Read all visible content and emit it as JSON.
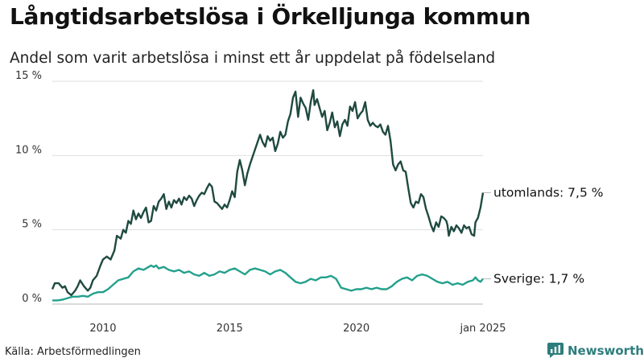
{
  "title": "Långtidsarbetslösa i Örkelljunga kommun",
  "subtitle": "Andel som varit arbetslösa i minst ett år uppdelat på födelseland",
  "source": "Källa: Arbetsförmedlingen",
  "brand": {
    "name": "Newsworthy",
    "icon": "bar-chart-icon",
    "color": "#2e7d7d"
  },
  "chart_data": {
    "type": "line",
    "title": "Långtidsarbetslösa i Örkelljunga kommun",
    "subtitle": "Andel som varit arbetslösa i minst ett år uppdelat på födelseland",
    "xlabel": "",
    "ylabel": "",
    "xlim": [
      2008.0,
      2025.0
    ],
    "ylim": [
      0,
      15
    ],
    "y_ticks": [
      0,
      5,
      10,
      15
    ],
    "y_tick_labels": [
      "0 %",
      "5 %",
      "10 %",
      "15 %"
    ],
    "x_ticks": [
      2010,
      2015,
      2020,
      2025
    ],
    "x_tick_labels": [
      "2010",
      "2015",
      "2020",
      "jan 2025"
    ],
    "grid": true,
    "series": [
      {
        "name": "utomlands",
        "label": "utomlands: 7,5 %",
        "color": "#1f4a40",
        "points": [
          [
            2008.0,
            1.0
          ],
          [
            2008.1,
            1.4
          ],
          [
            2008.25,
            1.4
          ],
          [
            2008.4,
            1.1
          ],
          [
            2008.5,
            1.2
          ],
          [
            2008.6,
            0.8
          ],
          [
            2008.75,
            0.6
          ],
          [
            2008.9,
            0.9
          ],
          [
            2009.0,
            1.2
          ],
          [
            2009.1,
            1.6
          ],
          [
            2009.25,
            1.2
          ],
          [
            2009.4,
            0.9
          ],
          [
            2009.5,
            1.1
          ],
          [
            2009.6,
            1.6
          ],
          [
            2009.75,
            1.9
          ],
          [
            2009.9,
            2.6
          ],
          [
            2010.0,
            3.0
          ],
          [
            2010.15,
            3.2
          ],
          [
            2010.3,
            3.0
          ],
          [
            2010.45,
            3.6
          ],
          [
            2010.55,
            4.6
          ],
          [
            2010.7,
            4.4
          ],
          [
            2010.8,
            5.0
          ],
          [
            2010.9,
            4.8
          ],
          [
            2011.0,
            5.6
          ],
          [
            2011.1,
            5.4
          ],
          [
            2011.2,
            6.3
          ],
          [
            2011.3,
            5.7
          ],
          [
            2011.4,
            6.1
          ],
          [
            2011.5,
            5.8
          ],
          [
            2011.6,
            6.2
          ],
          [
            2011.7,
            6.5
          ],
          [
            2011.8,
            5.5
          ],
          [
            2011.9,
            5.6
          ],
          [
            2012.0,
            6.6
          ],
          [
            2012.1,
            6.3
          ],
          [
            2012.2,
            6.9
          ],
          [
            2012.3,
            7.1
          ],
          [
            2012.4,
            7.4
          ],
          [
            2012.5,
            6.4
          ],
          [
            2012.6,
            6.9
          ],
          [
            2012.7,
            6.5
          ],
          [
            2012.8,
            7.0
          ],
          [
            2012.9,
            6.8
          ],
          [
            2013.0,
            7.1
          ],
          [
            2013.1,
            6.7
          ],
          [
            2013.2,
            7.2
          ],
          [
            2013.3,
            7.0
          ],
          [
            2013.4,
            7.3
          ],
          [
            2013.5,
            7.1
          ],
          [
            2013.6,
            6.6
          ],
          [
            2013.7,
            7.0
          ],
          [
            2013.8,
            7.3
          ],
          [
            2013.9,
            7.5
          ],
          [
            2014.0,
            7.4
          ],
          [
            2014.1,
            7.8
          ],
          [
            2014.2,
            8.1
          ],
          [
            2014.3,
            7.9
          ],
          [
            2014.4,
            6.9
          ],
          [
            2014.5,
            6.8
          ],
          [
            2014.6,
            6.6
          ],
          [
            2014.7,
            6.4
          ],
          [
            2014.8,
            6.7
          ],
          [
            2014.9,
            6.5
          ],
          [
            2015.0,
            7.0
          ],
          [
            2015.1,
            7.6
          ],
          [
            2015.2,
            7.2
          ],
          [
            2015.3,
            8.9
          ],
          [
            2015.4,
            9.7
          ],
          [
            2015.5,
            9.0
          ],
          [
            2015.6,
            8.0
          ],
          [
            2015.7,
            8.8
          ],
          [
            2015.8,
            9.4
          ],
          [
            2015.9,
            9.9
          ],
          [
            2016.0,
            10.4
          ],
          [
            2016.1,
            10.9
          ],
          [
            2016.2,
            11.4
          ],
          [
            2016.3,
            10.9
          ],
          [
            2016.4,
            10.6
          ],
          [
            2016.5,
            11.3
          ],
          [
            2016.6,
            11.0
          ],
          [
            2016.7,
            11.2
          ],
          [
            2016.8,
            10.3
          ],
          [
            2016.9,
            10.8
          ],
          [
            2017.0,
            11.6
          ],
          [
            2017.1,
            11.2
          ],
          [
            2017.2,
            11.4
          ],
          [
            2017.3,
            12.3
          ],
          [
            2017.4,
            12.8
          ],
          [
            2017.5,
            13.9
          ],
          [
            2017.6,
            14.3
          ],
          [
            2017.7,
            12.6
          ],
          [
            2017.8,
            13.9
          ],
          [
            2017.9,
            13.5
          ],
          [
            2018.0,
            13.2
          ],
          [
            2018.1,
            12.4
          ],
          [
            2018.2,
            13.6
          ],
          [
            2018.3,
            14.4
          ],
          [
            2018.35,
            13.4
          ],
          [
            2018.45,
            13.8
          ],
          [
            2018.55,
            13.2
          ],
          [
            2018.65,
            12.6
          ],
          [
            2018.75,
            13.0
          ],
          [
            2018.85,
            11.7
          ],
          [
            2018.95,
            12.2
          ],
          [
            2019.05,
            12.9
          ],
          [
            2019.15,
            11.9
          ],
          [
            2019.25,
            12.3
          ],
          [
            2019.35,
            11.3
          ],
          [
            2019.45,
            12.1
          ],
          [
            2019.55,
            12.4
          ],
          [
            2019.65,
            12.0
          ],
          [
            2019.75,
            13.3
          ],
          [
            2019.85,
            13.0
          ],
          [
            2019.95,
            13.6
          ],
          [
            2020.05,
            12.5
          ],
          [
            2020.15,
            12.8
          ],
          [
            2020.25,
            13.0
          ],
          [
            2020.35,
            13.6
          ],
          [
            2020.45,
            12.4
          ],
          [
            2020.55,
            12.0
          ],
          [
            2020.65,
            12.2
          ],
          [
            2020.75,
            12.0
          ],
          [
            2020.85,
            11.9
          ],
          [
            2020.95,
            12.1
          ],
          [
            2021.05,
            11.6
          ],
          [
            2021.15,
            11.4
          ],
          [
            2021.25,
            12.0
          ],
          [
            2021.35,
            11.0
          ],
          [
            2021.45,
            9.4
          ],
          [
            2021.55,
            9.0
          ],
          [
            2021.65,
            9.4
          ],
          [
            2021.75,
            9.6
          ],
          [
            2021.85,
            9.0
          ],
          [
            2021.95,
            8.9
          ],
          [
            2022.05,
            7.8
          ],
          [
            2022.15,
            6.8
          ],
          [
            2022.25,
            6.5
          ],
          [
            2022.35,
            6.9
          ],
          [
            2022.45,
            6.8
          ],
          [
            2022.55,
            7.4
          ],
          [
            2022.65,
            7.2
          ],
          [
            2022.75,
            6.4
          ],
          [
            2022.85,
            5.9
          ],
          [
            2022.95,
            5.3
          ],
          [
            2023.05,
            4.9
          ],
          [
            2023.15,
            5.5
          ],
          [
            2023.25,
            5.2
          ],
          [
            2023.35,
            5.9
          ],
          [
            2023.45,
            5.8
          ],
          [
            2023.55,
            5.6
          ],
          [
            2023.6,
            5.3
          ],
          [
            2023.65,
            4.6
          ],
          [
            2023.75,
            5.2
          ],
          [
            2023.85,
            4.9
          ],
          [
            2023.95,
            5.3
          ],
          [
            2024.05,
            5.1
          ],
          [
            2024.15,
            4.8
          ],
          [
            2024.25,
            5.3
          ],
          [
            2024.35,
            5.1
          ],
          [
            2024.45,
            5.2
          ],
          [
            2024.55,
            4.7
          ],
          [
            2024.65,
            4.6
          ],
          [
            2024.7,
            5.5
          ],
          [
            2024.8,
            5.8
          ],
          [
            2024.9,
            6.5
          ],
          [
            2025.0,
            7.5
          ]
        ]
      },
      {
        "name": "Sverige",
        "label": "Sverige: 1,7 %",
        "color": "#23a08c",
        "points": [
          [
            2008.0,
            0.25
          ],
          [
            2008.2,
            0.25
          ],
          [
            2008.4,
            0.3
          ],
          [
            2008.6,
            0.4
          ],
          [
            2008.8,
            0.5
          ],
          [
            2009.0,
            0.5
          ],
          [
            2009.2,
            0.55
          ],
          [
            2009.4,
            0.5
          ],
          [
            2009.6,
            0.7
          ],
          [
            2009.8,
            0.8
          ],
          [
            2010.0,
            0.8
          ],
          [
            2010.2,
            1.0
          ],
          [
            2010.4,
            1.3
          ],
          [
            2010.6,
            1.6
          ],
          [
            2010.8,
            1.7
          ],
          [
            2011.0,
            1.8
          ],
          [
            2011.2,
            2.2
          ],
          [
            2011.4,
            2.4
          ],
          [
            2011.6,
            2.3
          ],
          [
            2011.8,
            2.5
          ],
          [
            2011.9,
            2.6
          ],
          [
            2012.0,
            2.5
          ],
          [
            2012.1,
            2.6
          ],
          [
            2012.2,
            2.4
          ],
          [
            2012.4,
            2.5
          ],
          [
            2012.6,
            2.3
          ],
          [
            2012.8,
            2.2
          ],
          [
            2013.0,
            2.3
          ],
          [
            2013.2,
            2.1
          ],
          [
            2013.4,
            2.2
          ],
          [
            2013.6,
            2.0
          ],
          [
            2013.8,
            1.9
          ],
          [
            2014.0,
            2.1
          ],
          [
            2014.2,
            1.9
          ],
          [
            2014.4,
            2.0
          ],
          [
            2014.6,
            2.2
          ],
          [
            2014.8,
            2.1
          ],
          [
            2015.0,
            2.3
          ],
          [
            2015.2,
            2.4
          ],
          [
            2015.4,
            2.2
          ],
          [
            2015.6,
            2.0
          ],
          [
            2015.8,
            2.3
          ],
          [
            2016.0,
            2.4
          ],
          [
            2016.2,
            2.3
          ],
          [
            2016.4,
            2.2
          ],
          [
            2016.6,
            2.0
          ],
          [
            2016.8,
            2.2
          ],
          [
            2017.0,
            2.3
          ],
          [
            2017.2,
            2.1
          ],
          [
            2017.4,
            1.8
          ],
          [
            2017.6,
            1.5
          ],
          [
            2017.8,
            1.4
          ],
          [
            2018.0,
            1.5
          ],
          [
            2018.2,
            1.7
          ],
          [
            2018.4,
            1.6
          ],
          [
            2018.6,
            1.8
          ],
          [
            2018.8,
            1.8
          ],
          [
            2019.0,
            1.9
          ],
          [
            2019.2,
            1.7
          ],
          [
            2019.4,
            1.1
          ],
          [
            2019.6,
            1.0
          ],
          [
            2019.8,
            0.9
          ],
          [
            2020.0,
            1.0
          ],
          [
            2020.2,
            1.0
          ],
          [
            2020.4,
            1.1
          ],
          [
            2020.6,
            1.0
          ],
          [
            2020.8,
            1.1
          ],
          [
            2021.0,
            1.0
          ],
          [
            2021.2,
            1.0
          ],
          [
            2021.4,
            1.2
          ],
          [
            2021.6,
            1.5
          ],
          [
            2021.8,
            1.7
          ],
          [
            2022.0,
            1.8
          ],
          [
            2022.2,
            1.6
          ],
          [
            2022.4,
            1.9
          ],
          [
            2022.6,
            2.0
          ],
          [
            2022.8,
            1.9
          ],
          [
            2023.0,
            1.7
          ],
          [
            2023.2,
            1.5
          ],
          [
            2023.4,
            1.4
          ],
          [
            2023.6,
            1.5
          ],
          [
            2023.8,
            1.3
          ],
          [
            2024.0,
            1.4
          ],
          [
            2024.2,
            1.3
          ],
          [
            2024.4,
            1.5
          ],
          [
            2024.6,
            1.6
          ],
          [
            2024.7,
            1.8
          ],
          [
            2024.8,
            1.6
          ],
          [
            2024.9,
            1.5
          ],
          [
            2025.0,
            1.7
          ]
        ]
      }
    ]
  }
}
